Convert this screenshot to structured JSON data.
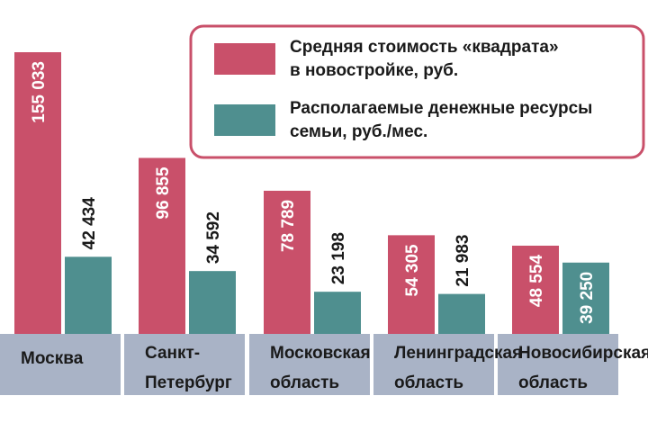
{
  "chart_data": {
    "type": "bar",
    "categories": [
      [
        "Москва"
      ],
      [
        "Санкт-",
        "Петербург"
      ],
      [
        "Московская",
        "область"
      ],
      [
        "Ленинградская",
        "область"
      ],
      [
        "Новосибирская",
        "область"
      ]
    ],
    "series": [
      {
        "name": [
          "Средняя стоимость «квадрата»",
          "в новостройке, руб."
        ],
        "values": [
          155033,
          96855,
          78789,
          54305,
          48554
        ],
        "labels": [
          "155 033",
          "96 855",
          "78 789",
          "54 305",
          "48 554"
        ],
        "color": "#c9506a"
      },
      {
        "name": [
          "Располагаемые денежные ресурсы",
          "семьи, руб./мес."
        ],
        "values": [
          42434,
          34592,
          23198,
          21983,
          39250
        ],
        "labels": [
          "42 434",
          "34 592",
          "23 198",
          "21 983",
          "39 250"
        ],
        "color": "#4f8f8f"
      }
    ],
    "ylim": [
      0,
      160000
    ],
    "grid": false,
    "legend_position": "top-right",
    "category_band_color": "#a9b3c6",
    "legend_border_color": "#c9506a"
  }
}
